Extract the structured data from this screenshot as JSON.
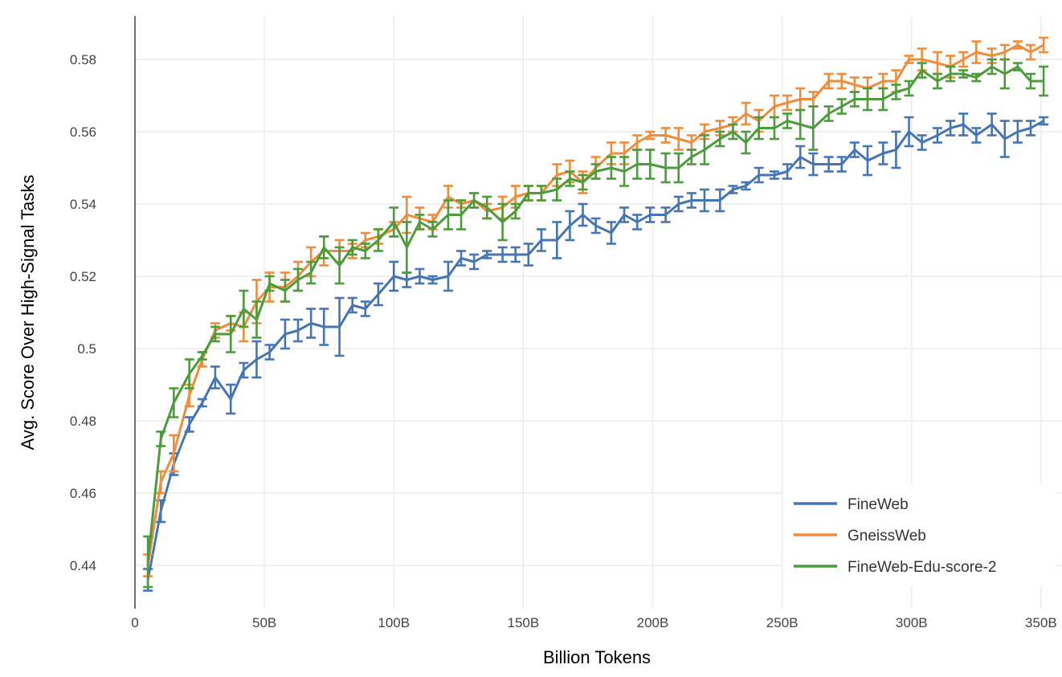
{
  "chart_data": {
    "type": "line",
    "xlabel": "Billion Tokens",
    "ylabel": "Avg. Score Over High-Signal Tasks",
    "xlim": [
      0,
      355
    ],
    "ylim": [
      0.428,
      0.592
    ],
    "xticks": [
      0,
      50,
      100,
      150,
      200,
      250,
      300,
      350
    ],
    "xtick_labels": [
      "0",
      "50B",
      "100B",
      "150B",
      "200B",
      "250B",
      "300B",
      "350B"
    ],
    "yticks": [
      0.44,
      0.46,
      0.48,
      0.5,
      0.52,
      0.54,
      0.56,
      0.58
    ],
    "ytick_labels": [
      "0.44",
      "0.46",
      "0.48",
      "0.5",
      "0.52",
      "0.54",
      "0.56",
      "0.58"
    ],
    "grid": true,
    "legend_position": "bottom-right",
    "series": [
      {
        "name": "FineWeb",
        "color": "#4575b4",
        "points": [
          [
            5,
            0.436,
            0.003
          ],
          [
            10,
            0.455,
            0.003
          ],
          [
            15,
            0.468,
            0.003
          ],
          [
            21,
            0.479,
            0.002
          ],
          [
            26,
            0.485,
            0.001
          ],
          [
            31,
            0.492,
            0.003
          ],
          [
            37,
            0.486,
            0.004
          ],
          [
            42,
            0.494,
            0.002
          ],
          [
            47,
            0.497,
            0.005
          ],
          [
            52,
            0.499,
            0.002
          ],
          [
            58,
            0.504,
            0.004
          ],
          [
            63,
            0.505,
            0.003
          ],
          [
            68,
            0.507,
            0.004
          ],
          [
            73,
            0.506,
            0.005
          ],
          [
            79,
            0.506,
            0.008
          ],
          [
            84,
            0.512,
            0.002
          ],
          [
            89,
            0.511,
            0.002
          ],
          [
            94,
            0.515,
            0.003
          ],
          [
            100,
            0.52,
            0.004
          ],
          [
            105,
            0.519,
            0.002
          ],
          [
            110,
            0.52,
            0.002
          ],
          [
            115,
            0.519,
            0.001
          ],
          [
            121,
            0.52,
            0.004
          ],
          [
            126,
            0.525,
            0.002
          ],
          [
            131,
            0.524,
            0.002
          ],
          [
            136,
            0.526,
            0.001
          ],
          [
            142,
            0.526,
            0.002
          ],
          [
            147,
            0.526,
            0.002
          ],
          [
            152,
            0.526,
            0.003
          ],
          [
            157,
            0.53,
            0.003
          ],
          [
            163,
            0.53,
            0.005
          ],
          [
            168,
            0.534,
            0.004
          ],
          [
            173,
            0.537,
            0.003
          ],
          [
            178,
            0.534,
            0.002
          ],
          [
            184,
            0.532,
            0.003
          ],
          [
            189,
            0.537,
            0.002
          ],
          [
            194,
            0.535,
            0.002
          ],
          [
            199,
            0.537,
            0.002
          ],
          [
            205,
            0.537,
            0.002
          ],
          [
            210,
            0.54,
            0.002
          ],
          [
            215,
            0.541,
            0.002
          ],
          [
            220,
            0.541,
            0.003
          ],
          [
            226,
            0.541,
            0.003
          ],
          [
            231,
            0.544,
            0.001
          ],
          [
            236,
            0.545,
            0.001
          ],
          [
            241,
            0.548,
            0.002
          ],
          [
            247,
            0.548,
            0.001
          ],
          [
            252,
            0.549,
            0.002
          ],
          [
            257,
            0.553,
            0.003
          ],
          [
            262,
            0.551,
            0.003
          ],
          [
            268,
            0.551,
            0.002
          ],
          [
            273,
            0.551,
            0.002
          ],
          [
            278,
            0.555,
            0.002
          ],
          [
            283,
            0.552,
            0.004
          ],
          [
            289,
            0.554,
            0.003
          ],
          [
            294,
            0.555,
            0.005
          ],
          [
            299,
            0.56,
            0.004
          ],
          [
            304,
            0.557,
            0.002
          ],
          [
            310,
            0.559,
            0.002
          ],
          [
            315,
            0.561,
            0.002
          ],
          [
            320,
            0.562,
            0.003
          ],
          [
            325,
            0.559,
            0.002
          ],
          [
            331,
            0.562,
            0.003
          ],
          [
            336,
            0.558,
            0.005
          ],
          [
            341,
            0.56,
            0.003
          ],
          [
            346,
            0.561,
            0.002
          ],
          [
            351,
            0.563,
            0.001
          ]
        ]
      },
      {
        "name": "GneissWeb",
        "color": "#f08c3a",
        "points": [
          [
            5,
            0.44,
            0.003
          ],
          [
            10,
            0.463,
            0.003
          ],
          [
            15,
            0.471,
            0.005
          ],
          [
            21,
            0.487,
            0.003
          ],
          [
            26,
            0.497,
            0.002
          ],
          [
            31,
            0.505,
            0.002
          ],
          [
            37,
            0.507,
            0.002
          ],
          [
            42,
            0.506,
            0.004
          ],
          [
            47,
            0.513,
            0.006
          ],
          [
            52,
            0.517,
            0.004
          ],
          [
            58,
            0.517,
            0.004
          ],
          [
            63,
            0.52,
            0.004
          ],
          [
            68,
            0.524,
            0.004
          ],
          [
            73,
            0.527,
            0.004
          ],
          [
            79,
            0.527,
            0.003
          ],
          [
            84,
            0.527,
            0.002
          ],
          [
            89,
            0.53,
            0.002
          ],
          [
            94,
            0.531,
            0.002
          ],
          [
            100,
            0.533,
            0.002
          ],
          [
            105,
            0.537,
            0.005
          ],
          [
            110,
            0.536,
            0.003
          ],
          [
            115,
            0.535,
            0.002
          ],
          [
            121,
            0.542,
            0.003
          ],
          [
            126,
            0.54,
            0.001
          ],
          [
            131,
            0.541,
            0.002
          ],
          [
            136,
            0.538,
            0.002
          ],
          [
            142,
            0.539,
            0.003
          ],
          [
            147,
            0.542,
            0.003
          ],
          [
            152,
            0.543,
            0.002
          ],
          [
            157,
            0.543,
            0.002
          ],
          [
            163,
            0.548,
            0.003
          ],
          [
            168,
            0.549,
            0.003
          ],
          [
            173,
            0.546,
            0.003
          ],
          [
            178,
            0.55,
            0.003
          ],
          [
            184,
            0.554,
            0.003
          ],
          [
            189,
            0.554,
            0.003
          ],
          [
            194,
            0.557,
            0.002
          ],
          [
            199,
            0.559,
            0.001
          ],
          [
            205,
            0.559,
            0.002
          ],
          [
            210,
            0.558,
            0.003
          ],
          [
            215,
            0.557,
            0.002
          ],
          [
            220,
            0.56,
            0.002
          ],
          [
            226,
            0.561,
            0.002
          ],
          [
            231,
            0.562,
            0.002
          ],
          [
            236,
            0.565,
            0.003
          ],
          [
            241,
            0.563,
            0.003
          ],
          [
            247,
            0.567,
            0.003
          ],
          [
            252,
            0.568,
            0.002
          ],
          [
            257,
            0.569,
            0.003
          ],
          [
            262,
            0.569,
            0.002
          ],
          [
            268,
            0.574,
            0.002
          ],
          [
            273,
            0.574,
            0.002
          ],
          [
            278,
            0.573,
            0.002
          ],
          [
            283,
            0.572,
            0.003
          ],
          [
            289,
            0.574,
            0.002
          ],
          [
            294,
            0.574,
            0.003
          ],
          [
            299,
            0.58,
            0.001
          ],
          [
            304,
            0.58,
            0.003
          ],
          [
            310,
            0.579,
            0.003
          ],
          [
            315,
            0.578,
            0.003
          ],
          [
            320,
            0.58,
            0.002
          ],
          [
            325,
            0.582,
            0.003
          ],
          [
            331,
            0.581,
            0.002
          ],
          [
            336,
            0.582,
            0.002
          ],
          [
            341,
            0.584,
            0.001
          ],
          [
            346,
            0.582,
            0.002
          ],
          [
            351,
            0.584,
            0.002
          ]
        ]
      },
      {
        "name": "FineWeb-Edu-score-2",
        "color": "#4b9c3a",
        "points": [
          [
            5,
            0.441,
            0.007
          ],
          [
            10,
            0.475,
            0.002
          ],
          [
            15,
            0.485,
            0.004
          ],
          [
            21,
            0.493,
            0.004
          ],
          [
            26,
            0.498,
            0.001
          ],
          [
            31,
            0.504,
            0.002
          ],
          [
            37,
            0.504,
            0.005
          ],
          [
            42,
            0.511,
            0.005
          ],
          [
            47,
            0.508,
            0.005
          ],
          [
            52,
            0.518,
            0.002
          ],
          [
            58,
            0.516,
            0.003
          ],
          [
            63,
            0.519,
            0.003
          ],
          [
            68,
            0.521,
            0.003
          ],
          [
            73,
            0.528,
            0.003
          ],
          [
            79,
            0.523,
            0.005
          ],
          [
            84,
            0.528,
            0.002
          ],
          [
            89,
            0.527,
            0.002
          ],
          [
            94,
            0.53,
            0.003
          ],
          [
            100,
            0.535,
            0.004
          ],
          [
            105,
            0.528,
            0.007
          ],
          [
            110,
            0.535,
            0.002
          ],
          [
            115,
            0.533,
            0.002
          ],
          [
            121,
            0.537,
            0.004
          ],
          [
            126,
            0.537,
            0.004
          ],
          [
            131,
            0.541,
            0.002
          ],
          [
            136,
            0.539,
            0.003
          ],
          [
            142,
            0.535,
            0.005
          ],
          [
            147,
            0.538,
            0.002
          ],
          [
            152,
            0.543,
            0.002
          ],
          [
            157,
            0.543,
            0.002
          ],
          [
            163,
            0.544,
            0.003
          ],
          [
            168,
            0.547,
            0.002
          ],
          [
            173,
            0.546,
            0.002
          ],
          [
            178,
            0.549,
            0.002
          ],
          [
            184,
            0.55,
            0.003
          ],
          [
            189,
            0.549,
            0.004
          ],
          [
            194,
            0.551,
            0.004
          ],
          [
            199,
            0.551,
            0.004
          ],
          [
            205,
            0.55,
            0.004
          ],
          [
            210,
            0.55,
            0.004
          ],
          [
            215,
            0.553,
            0.002
          ],
          [
            220,
            0.555,
            0.004
          ],
          [
            226,
            0.558,
            0.002
          ],
          [
            231,
            0.56,
            0.002
          ],
          [
            236,
            0.557,
            0.003
          ],
          [
            241,
            0.561,
            0.003
          ],
          [
            247,
            0.561,
            0.003
          ],
          [
            252,
            0.563,
            0.002
          ],
          [
            257,
            0.562,
            0.004
          ],
          [
            262,
            0.561,
            0.006
          ],
          [
            268,
            0.565,
            0.002
          ],
          [
            273,
            0.567,
            0.002
          ],
          [
            278,
            0.569,
            0.002
          ],
          [
            283,
            0.569,
            0.003
          ],
          [
            289,
            0.569,
            0.003
          ],
          [
            294,
            0.571,
            0.002
          ],
          [
            299,
            0.572,
            0.002
          ],
          [
            304,
            0.577,
            0.002
          ],
          [
            310,
            0.574,
            0.002
          ],
          [
            315,
            0.576,
            0.002
          ],
          [
            320,
            0.576,
            0.001
          ],
          [
            325,
            0.575,
            0.001
          ],
          [
            331,
            0.578,
            0.002
          ],
          [
            336,
            0.576,
            0.004
          ],
          [
            341,
            0.578,
            0.001
          ],
          [
            346,
            0.574,
            0.002
          ],
          [
            351,
            0.574,
            0.004
          ]
        ]
      }
    ]
  }
}
